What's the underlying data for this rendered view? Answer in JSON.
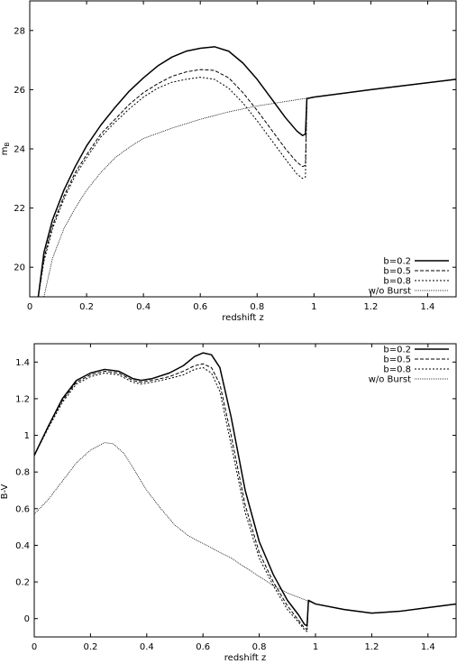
{
  "chart_data": [
    {
      "type": "line",
      "xlabel": "redshift z",
      "ylabel": "m",
      "ylabel_sub": "B",
      "xlim": [
        0,
        1.5
      ],
      "ylim": [
        19,
        29
      ],
      "xticks": [
        "0",
        "0.2",
        "0.4",
        "0.6",
        "0.8",
        "1",
        "1.2",
        "1.4"
      ],
      "xtick_values": [
        0,
        0.2,
        0.4,
        0.6,
        0.8,
        1.0,
        1.2,
        1.4
      ],
      "yticks": [
        "20",
        "22",
        "24",
        "26",
        "28"
      ],
      "ytick_values": [
        20,
        22,
        24,
        26,
        28
      ],
      "legend_position": "bottom-right",
      "series": [
        {
          "name": "b=0.2",
          "dash": "solid",
          "width": 1.5,
          "points": [
            [
              0.03,
              19
            ],
            [
              0.05,
              20.5
            ],
            [
              0.08,
              21.6
            ],
            [
              0.12,
              22.6
            ],
            [
              0.16,
              23.4
            ],
            [
              0.2,
              24.1
            ],
            [
              0.25,
              24.8
            ],
            [
              0.3,
              25.4
            ],
            [
              0.35,
              25.95
            ],
            [
              0.4,
              26.4
            ],
            [
              0.45,
              26.8
            ],
            [
              0.5,
              27.1
            ],
            [
              0.55,
              27.3
            ],
            [
              0.6,
              27.4
            ],
            [
              0.65,
              27.45
            ],
            [
              0.7,
              27.3
            ],
            [
              0.75,
              26.9
            ],
            [
              0.8,
              26.35
            ],
            [
              0.85,
              25.7
            ],
            [
              0.9,
              25.05
            ],
            [
              0.94,
              24.6
            ],
            [
              0.96,
              24.45
            ],
            [
              0.97,
              24.5
            ],
            [
              0.975,
              25.7
            ],
            [
              1.0,
              25.75
            ],
            [
              1.2,
              26.0
            ],
            [
              1.5,
              26.35
            ]
          ]
        },
        {
          "name": "b=0.5",
          "dash": "dashed",
          "width": 1.0,
          "points": [
            [
              0.03,
              19
            ],
            [
              0.05,
              20.3
            ],
            [
              0.08,
              21.4
            ],
            [
              0.12,
              22.4
            ],
            [
              0.16,
              23.2
            ],
            [
              0.2,
              23.8
            ],
            [
              0.25,
              24.5
            ],
            [
              0.3,
              25.0
            ],
            [
              0.35,
              25.5
            ],
            [
              0.4,
              25.9
            ],
            [
              0.45,
              26.2
            ],
            [
              0.5,
              26.45
            ],
            [
              0.55,
              26.6
            ],
            [
              0.6,
              26.68
            ],
            [
              0.65,
              26.65
            ],
            [
              0.7,
              26.4
            ],
            [
              0.75,
              25.9
            ],
            [
              0.8,
              25.3
            ],
            [
              0.85,
              24.65
            ],
            [
              0.9,
              24.0
            ],
            [
              0.94,
              23.55
            ],
            [
              0.96,
              23.4
            ],
            [
              0.97,
              23.45
            ],
            [
              0.975,
              25.7
            ],
            [
              1.0,
              25.75
            ],
            [
              1.2,
              26.0
            ],
            [
              1.5,
              26.35
            ]
          ]
        },
        {
          "name": "b=0.8",
          "dash": "dotted",
          "width": 1.0,
          "points": [
            [
              0.03,
              19
            ],
            [
              0.05,
              20.2
            ],
            [
              0.08,
              21.3
            ],
            [
              0.12,
              22.3
            ],
            [
              0.16,
              23.1
            ],
            [
              0.2,
              23.7
            ],
            [
              0.25,
              24.4
            ],
            [
              0.3,
              24.9
            ],
            [
              0.35,
              25.35
            ],
            [
              0.4,
              25.75
            ],
            [
              0.45,
              26.05
            ],
            [
              0.5,
              26.25
            ],
            [
              0.55,
              26.35
            ],
            [
              0.6,
              26.42
            ],
            [
              0.65,
              26.35
            ],
            [
              0.7,
              26.05
            ],
            [
              0.75,
              25.55
            ],
            [
              0.8,
              24.95
            ],
            [
              0.85,
              24.3
            ],
            [
              0.9,
              23.65
            ],
            [
              0.94,
              23.15
            ],
            [
              0.96,
              23.0
            ],
            [
              0.97,
              23.05
            ],
            [
              0.975,
              25.7
            ],
            [
              1.0,
              25.75
            ],
            [
              1.2,
              26.0
            ],
            [
              1.5,
              26.35
            ]
          ]
        },
        {
          "name": "w/o Burst",
          "dash": "fine",
          "width": 0.8,
          "points": [
            [
              0.05,
              19
            ],
            [
              0.08,
              20.3
            ],
            [
              0.12,
              21.3
            ],
            [
              0.16,
              22.0
            ],
            [
              0.2,
              22.6
            ],
            [
              0.25,
              23.2
            ],
            [
              0.3,
              23.7
            ],
            [
              0.35,
              24.05
            ],
            [
              0.4,
              24.35
            ],
            [
              0.5,
              24.7
            ],
            [
              0.6,
              25.0
            ],
            [
              0.7,
              25.25
            ],
            [
              0.8,
              25.45
            ],
            [
              0.9,
              25.6
            ],
            [
              1.0,
              25.75
            ],
            [
              1.2,
              26.0
            ],
            [
              1.5,
              26.35
            ]
          ]
        }
      ]
    },
    {
      "type": "line",
      "xlabel": "redshift z",
      "ylabel": "B-V",
      "xlim": [
        0,
        1.5
      ],
      "ylim": [
        -0.1,
        1.5
      ],
      "xticks": [
        "0",
        "0.2",
        "0.4",
        "0.6",
        "0.8",
        "1",
        "1.2",
        "1.4"
      ],
      "xtick_values": [
        0,
        0.2,
        0.4,
        0.6,
        0.8,
        1.0,
        1.2,
        1.4
      ],
      "yticks": [
        "0",
        "0.2",
        "0.4",
        "0.6",
        "0.8",
        "1",
        "1.2",
        "1.4"
      ],
      "ytick_values": [
        0,
        0.2,
        0.4,
        0.6,
        0.8,
        1.0,
        1.2,
        1.4
      ],
      "legend_position": "top-right",
      "series": [
        {
          "name": "b=0.2",
          "dash": "solid",
          "width": 1.5,
          "points": [
            [
              0,
              0.89
            ],
            [
              0.05,
              1.05
            ],
            [
              0.1,
              1.2
            ],
            [
              0.15,
              1.3
            ],
            [
              0.2,
              1.34
            ],
            [
              0.25,
              1.36
            ],
            [
              0.3,
              1.35
            ],
            [
              0.35,
              1.31
            ],
            [
              0.38,
              1.3
            ],
            [
              0.42,
              1.31
            ],
            [
              0.48,
              1.34
            ],
            [
              0.53,
              1.38
            ],
            [
              0.57,
              1.43
            ],
            [
              0.6,
              1.45
            ],
            [
              0.63,
              1.44
            ],
            [
              0.66,
              1.37
            ],
            [
              0.7,
              1.1
            ],
            [
              0.75,
              0.7
            ],
            [
              0.8,
              0.42
            ],
            [
              0.85,
              0.24
            ],
            [
              0.9,
              0.1
            ],
            [
              0.94,
              0.02
            ],
            [
              0.96,
              -0.03
            ],
            [
              0.97,
              -0.04
            ],
            [
              0.975,
              0.1
            ],
            [
              1.0,
              0.08
            ],
            [
              1.1,
              0.05
            ],
            [
              1.2,
              0.03
            ],
            [
              1.3,
              0.04
            ],
            [
              1.4,
              0.06
            ],
            [
              1.5,
              0.08
            ]
          ]
        },
        {
          "name": "b=0.5",
          "dash": "dashed",
          "width": 1.0,
          "points": [
            [
              0,
              0.89
            ],
            [
              0.05,
              1.05
            ],
            [
              0.1,
              1.19
            ],
            [
              0.15,
              1.29
            ],
            [
              0.2,
              1.33
            ],
            [
              0.25,
              1.35
            ],
            [
              0.3,
              1.34
            ],
            [
              0.35,
              1.3
            ],
            [
              0.38,
              1.29
            ],
            [
              0.42,
              1.3
            ],
            [
              0.48,
              1.32
            ],
            [
              0.53,
              1.35
            ],
            [
              0.57,
              1.38
            ],
            [
              0.6,
              1.39
            ],
            [
              0.63,
              1.37
            ],
            [
              0.66,
              1.28
            ],
            [
              0.7,
              1.0
            ],
            [
              0.75,
              0.62
            ],
            [
              0.8,
              0.36
            ],
            [
              0.85,
              0.2
            ],
            [
              0.9,
              0.07
            ],
            [
              0.94,
              -0.01
            ],
            [
              0.96,
              -0.05
            ],
            [
              0.97,
              -0.06
            ],
            [
              0.975,
              0.1
            ],
            [
              1.0,
              0.08
            ],
            [
              1.1,
              0.05
            ],
            [
              1.2,
              0.03
            ],
            [
              1.3,
              0.04
            ],
            [
              1.4,
              0.06
            ],
            [
              1.5,
              0.08
            ]
          ]
        },
        {
          "name": "b=0.8",
          "dash": "dotted",
          "width": 1.0,
          "points": [
            [
              0,
              0.89
            ],
            [
              0.05,
              1.04
            ],
            [
              0.1,
              1.18
            ],
            [
              0.15,
              1.28
            ],
            [
              0.2,
              1.32
            ],
            [
              0.25,
              1.34
            ],
            [
              0.3,
              1.33
            ],
            [
              0.35,
              1.29
            ],
            [
              0.38,
              1.28
            ],
            [
              0.42,
              1.29
            ],
            [
              0.48,
              1.31
            ],
            [
              0.53,
              1.33
            ],
            [
              0.57,
              1.36
            ],
            [
              0.6,
              1.37
            ],
            [
              0.63,
              1.34
            ],
            [
              0.66,
              1.24
            ],
            [
              0.7,
              0.95
            ],
            [
              0.75,
              0.58
            ],
            [
              0.8,
              0.33
            ],
            [
              0.85,
              0.18
            ],
            [
              0.9,
              0.05
            ],
            [
              0.94,
              -0.02
            ],
            [
              0.96,
              -0.06
            ],
            [
              0.97,
              -0.07
            ],
            [
              0.975,
              0.1
            ],
            [
              1.0,
              0.08
            ],
            [
              1.1,
              0.05
            ],
            [
              1.2,
              0.03
            ],
            [
              1.3,
              0.04
            ],
            [
              1.4,
              0.06
            ],
            [
              1.5,
              0.08
            ]
          ]
        },
        {
          "name": "w/o Burst",
          "dash": "fine",
          "width": 0.8,
          "points": [
            [
              0,
              0.57
            ],
            [
              0.05,
              0.65
            ],
            [
              0.1,
              0.75
            ],
            [
              0.15,
              0.85
            ],
            [
              0.2,
              0.92
            ],
            [
              0.25,
              0.96
            ],
            [
              0.28,
              0.955
            ],
            [
              0.32,
              0.9
            ],
            [
              0.36,
              0.8
            ],
            [
              0.4,
              0.7
            ],
            [
              0.45,
              0.6
            ],
            [
              0.5,
              0.51
            ],
            [
              0.55,
              0.45
            ],
            [
              0.6,
              0.41
            ],
            [
              0.7,
              0.33
            ],
            [
              0.8,
              0.23
            ],
            [
              0.85,
              0.18
            ],
            [
              0.9,
              0.14
            ],
            [
              0.95,
              0.11
            ],
            [
              1.0,
              0.08
            ],
            [
              1.1,
              0.05
            ],
            [
              1.2,
              0.03
            ],
            [
              1.3,
              0.04
            ],
            [
              1.4,
              0.06
            ],
            [
              1.5,
              0.08
            ]
          ]
        }
      ]
    }
  ]
}
